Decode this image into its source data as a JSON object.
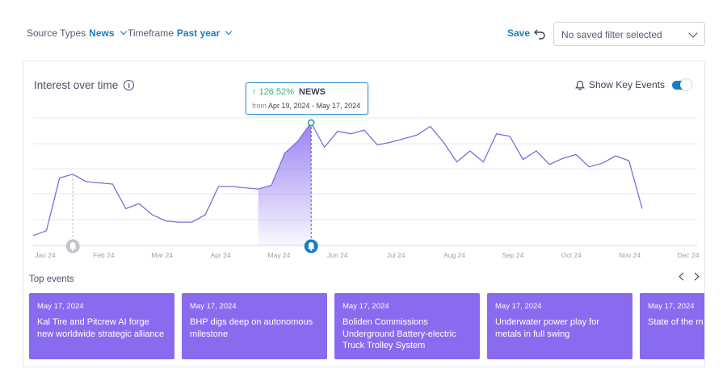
{
  "filters": {
    "source": {
      "label": "Source Types",
      "value": "News"
    },
    "timeframe": {
      "label": "Timeframe",
      "value": "Past year"
    },
    "save_label": "Save",
    "saved_filter_placeholder": "No saved filter selected"
  },
  "card": {
    "title": "Interest over time",
    "show_key_events_label": "Show Key Events",
    "show_key_events_on": true
  },
  "tooltip": {
    "change": "126.52%",
    "source": "NEWS",
    "from_label": "from",
    "range": "Apr 19, 2024 - May 17, 2024"
  },
  "chart_data": {
    "type": "line",
    "x_tick_labels": [
      "Jan 24",
      "Feb 24",
      "Mar 24",
      "Apr 24",
      "May 24",
      "Jun 24",
      "Jul 24",
      "Aug 24",
      "Sep 24",
      "Oct 24",
      "Nov 24",
      "Dec 24"
    ],
    "series": [
      {
        "values": [
          8,
          12,
          55,
          58,
          52,
          51,
          50,
          30,
          34,
          25,
          20,
          19,
          19,
          25,
          48,
          48,
          47,
          46,
          49,
          75,
          85,
          100,
          80,
          93,
          91,
          94,
          82,
          84,
          87,
          90,
          97,
          84,
          68,
          77,
          68,
          91,
          89,
          70,
          77,
          66,
          71,
          74,
          64,
          67,
          73,
          69,
          30
        ]
      }
    ],
    "highlight_range": {
      "from": "Apr 19, 2024",
      "to": "May 17, 2024"
    },
    "event_markers": [
      "Jan 24",
      "May 17, 2024"
    ],
    "ylim": [
      0,
      100
    ],
    "grid": "horizontal",
    "line_color": "#7b6ce0"
  },
  "top_events": {
    "title": "Top events",
    "items": [
      {
        "date": "May 17, 2024",
        "title": "Kal Tire and Pitcrew AI forge new worldwide strategic alliance"
      },
      {
        "date": "May 17, 2024",
        "title": "BHP digs deep on autonomous milestone"
      },
      {
        "date": "May 17, 2024",
        "title": "Boliden Commissions Underground Battery-electric Truck Trolley System"
      },
      {
        "date": "May 17, 2024",
        "title": "Underwater power play for metals in full swing"
      },
      {
        "date": "May 17, 2024",
        "title": "State of the m"
      }
    ]
  },
  "colors": {
    "accent": "#1a7fbf",
    "event_card": "#8a6bf0",
    "line": "#7b6ce0",
    "positive": "#2bb673"
  }
}
